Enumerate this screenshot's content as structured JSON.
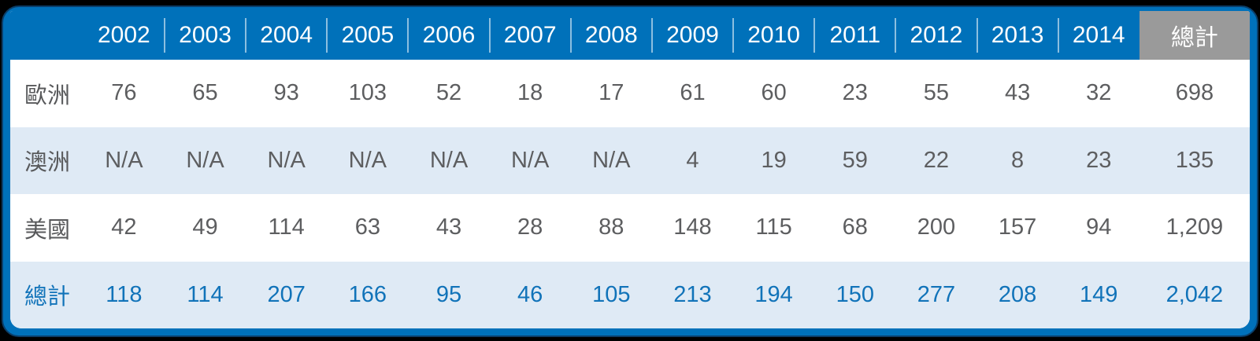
{
  "chart_data": {
    "type": "table",
    "title": "",
    "corner_label": "",
    "columns": [
      "2002",
      "2003",
      "2004",
      "2005",
      "2006",
      "2007",
      "2008",
      "2009",
      "2010",
      "2011",
      "2012",
      "2013",
      "2014",
      "總計"
    ],
    "rows": [
      {
        "label": "歐洲",
        "values": [
          "76",
          "65",
          "93",
          "103",
          "52",
          "18",
          "17",
          "61",
          "60",
          "23",
          "55",
          "43",
          "32",
          "698"
        ],
        "is_total": false
      },
      {
        "label": "澳洲",
        "values": [
          "N/A",
          "N/A",
          "N/A",
          "N/A",
          "N/A",
          "N/A",
          "N/A",
          "4",
          "19",
          "59",
          "22",
          "8",
          "23",
          "135"
        ],
        "is_total": false
      },
      {
        "label": "美國",
        "values": [
          "42",
          "49",
          "114",
          "63",
          "43",
          "28",
          "88",
          "148",
          "115",
          "68",
          "200",
          "157",
          "94",
          "1,209"
        ],
        "is_total": false
      },
      {
        "label": "總計",
        "values": [
          "118",
          "114",
          "207",
          "166",
          "95",
          "46",
          "105",
          "213",
          "194",
          "150",
          "277",
          "208",
          "149",
          "2,042"
        ],
        "is_total": true
      }
    ],
    "layout": {
      "striped": true,
      "total_column_header_highlighted": true,
      "total_row_highlighted": true
    }
  },
  "colors": {
    "header_bg": "#0071BA",
    "outer_edge": "#0B3E69",
    "total_col_header_bg": "#9A9A9A",
    "alt_row_bg": "#DFEAF5",
    "total_row_text": "#1173B9",
    "body_text": "#58595B",
    "header_text": "#FFFFFF",
    "page_bg": "#000000"
  }
}
